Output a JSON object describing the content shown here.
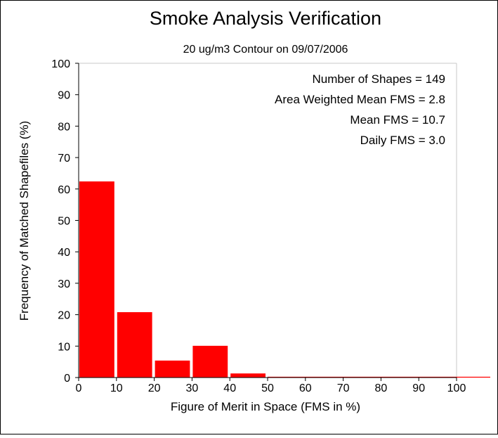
{
  "chart_data": {
    "type": "bar",
    "title": "Smoke Analysis Verification",
    "subtitle": "20 ug/m3 Contour on 09/07/2006",
    "xlabel": "Figure of Merit in Space (FMS in %)",
    "ylabel": "Frequency of Matched Shapefiles (%)",
    "xlim": [
      0,
      100
    ],
    "ylim": [
      0,
      100
    ],
    "xticks": [
      "0",
      "10",
      "20",
      "30",
      "40",
      "50",
      "60",
      "70",
      "80",
      "90",
      "100"
    ],
    "yticks": [
      "0",
      "10",
      "20",
      "30",
      "40",
      "50",
      "60",
      "70",
      "80",
      "90",
      "100"
    ],
    "bins": [
      {
        "start": 0,
        "end": 10,
        "value": 62.4
      },
      {
        "start": 10,
        "end": 20,
        "value": 20.8
      },
      {
        "start": 20,
        "end": 30,
        "value": 5.4
      },
      {
        "start": 30,
        "end": 40,
        "value": 10.1
      },
      {
        "start": 40,
        "end": 50,
        "value": 1.3
      },
      {
        "start": 50,
        "end": 60,
        "value": 0
      },
      {
        "start": 60,
        "end": 70,
        "value": 0
      },
      {
        "start": 70,
        "end": 80,
        "value": 0
      },
      {
        "start": 80,
        "end": 90,
        "value": 0
      },
      {
        "start": 90,
        "end": 100,
        "value": 0
      }
    ],
    "bar_color": "#ff0000",
    "annotations": [
      "Number of Shapes = 149",
      "Area Weighted Mean FMS = 2.8",
      "Mean FMS = 10.7",
      "Daily FMS = 3.0"
    ],
    "grid": false
  }
}
